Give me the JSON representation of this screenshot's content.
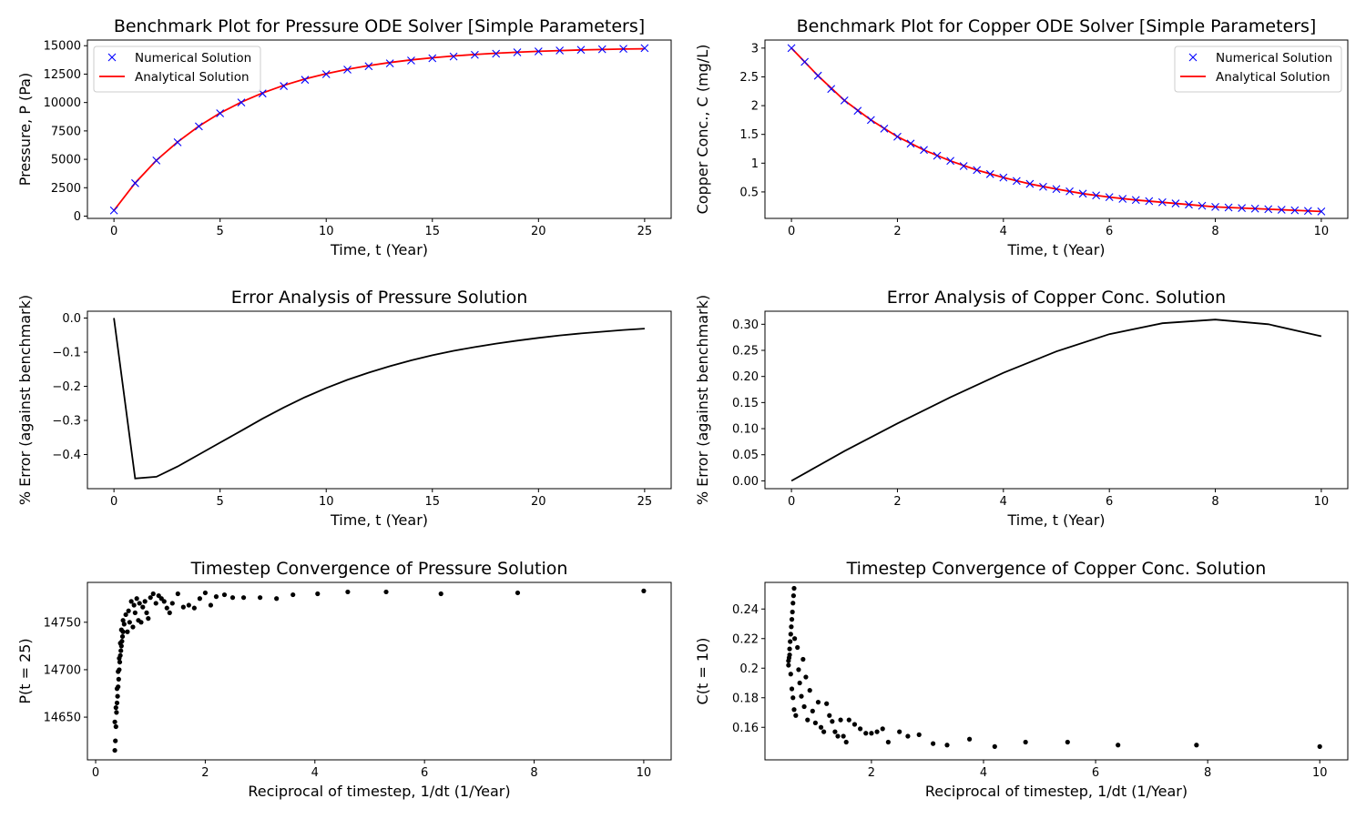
{
  "figure": {
    "background": "#ffffff"
  },
  "colors": {
    "numerical": "#0000ff",
    "analytical": "#ff0000",
    "error": "#000000",
    "points": "#000000"
  },
  "charts": [
    {
      "id": "p1",
      "type": "line",
      "title": "Benchmark Plot for Pressure ODE Solver [Simple Parameters]",
      "xlabel": "Time, t (Year)",
      "ylabel": "Pressure, P (Pa)",
      "xlim": [
        -1.25,
        26.25
      ],
      "ylim": [
        -200,
        15500
      ],
      "xticks": [
        0,
        5,
        10,
        15,
        20,
        25
      ],
      "yticks": [
        0,
        2500,
        5000,
        7500,
        10000,
        12500,
        15000
      ],
      "legend_position": "upper-left",
      "series": [
        {
          "name": "Numerical Solution",
          "marker": "x",
          "color": "#0000ff",
          "x": [
            0,
            1,
            2,
            3,
            4,
            5,
            6,
            7,
            8,
            9,
            10,
            11,
            12,
            13,
            14,
            15,
            16,
            17,
            18,
            19,
            20,
            21,
            22,
            23,
            24,
            25
          ],
          "y": [
            500,
            2900,
            4900,
            6500,
            7900,
            9050,
            10000,
            10800,
            11450,
            12000,
            12500,
            12900,
            13200,
            13450,
            13700,
            13900,
            14050,
            14200,
            14300,
            14420,
            14500,
            14580,
            14640,
            14690,
            14730,
            14790
          ]
        },
        {
          "name": "Analytical Solution",
          "line": "solid",
          "color": "#ff0000",
          "x": [
            0,
            1,
            2,
            3,
            4,
            5,
            6,
            7,
            8,
            9,
            10,
            11,
            12,
            13,
            14,
            15,
            16,
            17,
            18,
            19,
            20,
            21,
            22,
            23,
            24,
            25
          ],
          "y": [
            500,
            2914,
            4921,
            6537,
            7920,
            9074,
            10037,
            10840,
            11510,
            12070,
            12537,
            12927,
            13252,
            13523,
            13750,
            13939,
            14097,
            14228,
            14338,
            14430,
            14506,
            14570,
            14623,
            14667,
            14704,
            14735
          ]
        }
      ]
    },
    {
      "id": "c1",
      "type": "line",
      "title": "Benchmark Plot for Copper ODE Solver [Simple Parameters]",
      "xlabel": "Time, t (Year)",
      "ylabel": "Copper Conc., C (mg/L)",
      "xlim": [
        -0.5,
        10.5
      ],
      "ylim": [
        0.04,
        3.14
      ],
      "xticks": [
        0,
        2,
        4,
        6,
        8,
        10
      ],
      "yticks": [
        0.5,
        1.0,
        1.5,
        2.0,
        2.5,
        3.0
      ],
      "legend_position": "upper-right",
      "series": [
        {
          "name": "Numerical Solution",
          "marker": "x",
          "color": "#0000ff",
          "x": [
            0,
            0.25,
            0.5,
            0.75,
            1,
            1.25,
            1.5,
            1.75,
            2,
            2.25,
            2.5,
            2.75,
            3,
            3.25,
            3.5,
            3.75,
            4,
            4.25,
            4.5,
            4.75,
            5,
            5.25,
            5.5,
            5.75,
            6,
            6.25,
            6.5,
            6.75,
            7,
            7.25,
            7.5,
            7.75,
            8,
            8.25,
            8.5,
            8.75,
            9,
            9.25,
            9.5,
            9.75,
            10
          ],
          "y": [
            3.0,
            2.76,
            2.52,
            2.29,
            2.09,
            1.91,
            1.75,
            1.6,
            1.46,
            1.34,
            1.23,
            1.13,
            1.04,
            0.95,
            0.88,
            0.81,
            0.75,
            0.69,
            0.64,
            0.59,
            0.55,
            0.51,
            0.47,
            0.44,
            0.41,
            0.38,
            0.36,
            0.34,
            0.32,
            0.3,
            0.28,
            0.26,
            0.24,
            0.23,
            0.22,
            0.21,
            0.2,
            0.19,
            0.18,
            0.17,
            0.16
          ]
        },
        {
          "name": "Analytical Solution",
          "line": "solid",
          "color": "#ff0000",
          "x": [
            0,
            0.5,
            1,
            1.5,
            2,
            2.5,
            3,
            3.5,
            4,
            4.5,
            5,
            5.5,
            6,
            6.5,
            7,
            7.5,
            8,
            8.5,
            9,
            9.5,
            10
          ],
          "y": [
            3.0,
            2.52,
            2.09,
            1.75,
            1.46,
            1.23,
            1.04,
            0.88,
            0.75,
            0.64,
            0.55,
            0.47,
            0.41,
            0.36,
            0.32,
            0.28,
            0.24,
            0.22,
            0.2,
            0.18,
            0.16
          ]
        }
      ]
    },
    {
      "id": "p2",
      "type": "line",
      "title": "Error Analysis of Pressure Solution",
      "xlabel": "Time, t (Year)",
      "ylabel": "% Error (against benchmark)",
      "xlim": [
        -1.25,
        26.25
      ],
      "ylim": [
        -0.5,
        0.02
      ],
      "xticks": [
        0,
        5,
        10,
        15,
        20,
        25
      ],
      "yticks": [
        0.0,
        -0.1,
        -0.2,
        -0.3,
        -0.4
      ],
      "ytick_labels": [
        "0.0",
        "−0.1",
        "−0.2",
        "−0.3",
        "−0.4"
      ],
      "series": [
        {
          "name": "",
          "line": "solid",
          "color": "#000000",
          "x": [
            0,
            1,
            2,
            3,
            4,
            5,
            6,
            7,
            8,
            9,
            10,
            11,
            12,
            13,
            14,
            15,
            16,
            17,
            18,
            19,
            20,
            21,
            22,
            23,
            24,
            25
          ],
          "y": [
            0,
            -0.47,
            -0.465,
            -0.435,
            -0.4,
            -0.365,
            -0.33,
            -0.295,
            -0.262,
            -0.232,
            -0.205,
            -0.181,
            -0.16,
            -0.141,
            -0.124,
            -0.109,
            -0.096,
            -0.085,
            -0.075,
            -0.066,
            -0.058,
            -0.051,
            -0.045,
            -0.04,
            -0.035,
            -0.031
          ]
        }
      ]
    },
    {
      "id": "c2",
      "type": "line",
      "title": "Error Analysis of Copper Conc. Solution",
      "xlabel": "Time, t (Year)",
      "ylabel": "% Error (against benchmark)",
      "xlim": [
        -0.5,
        10.5
      ],
      "ylim": [
        -0.015,
        0.325
      ],
      "xticks": [
        0,
        2,
        4,
        6,
        8,
        10
      ],
      "yticks": [
        0.0,
        0.05,
        0.1,
        0.15,
        0.2,
        0.25,
        0.3
      ],
      "ytick_labels": [
        "0.00",
        "0.05",
        "0.10",
        "0.15",
        "0.20",
        "0.25",
        "0.30"
      ],
      "series": [
        {
          "name": "",
          "line": "solid",
          "color": "#000000",
          "x": [
            0,
            1,
            2,
            3,
            4,
            5,
            6,
            7,
            8,
            9,
            10
          ],
          "y": [
            0,
            0.057,
            0.11,
            0.16,
            0.207,
            0.248,
            0.281,
            0.302,
            0.309,
            0.3,
            0.277
          ]
        }
      ]
    },
    {
      "id": "p3",
      "type": "scatter",
      "title": "Timestep Convergence of Pressure Solution",
      "xlabel": "Reciprocal of timestep, 1/dt (1/Year)",
      "ylabel": "P(t = 25)",
      "xlim": [
        -0.15,
        10.5
      ],
      "ylim": [
        14605,
        14792
      ],
      "xticks": [
        0,
        2,
        4,
        6,
        8,
        10
      ],
      "yticks": [
        14650,
        14700,
        14750
      ],
      "series": [
        {
          "name": "",
          "marker": "dot",
          "color": "#000000",
          "x": [
            0.35,
            0.36,
            0.37,
            0.38,
            0.39,
            0.4,
            0.41,
            0.42,
            0.43,
            0.44,
            0.45,
            0.46,
            0.47,
            0.48,
            0.49,
            0.5,
            0.35,
            0.37,
            0.39,
            0.41,
            0.43,
            0.45,
            0.47,
            0.5,
            0.52,
            0.55,
            0.58,
            0.6,
            0.62,
            0.65,
            0.68,
            0.7,
            0.72,
            0.75,
            0.78,
            0.8,
            0.83,
            0.86,
            0.9,
            0.93,
            0.96,
            1.0,
            1.05,
            1.1,
            1.15,
            1.2,
            1.25,
            1.3,
            1.35,
            1.4,
            1.5,
            1.6,
            1.7,
            1.8,
            1.9,
            2.0,
            2.1,
            2.2,
            2.35,
            2.5,
            2.7,
            3.0,
            3.3,
            3.6,
            4.05,
            4.6,
            5.3,
            6.3,
            7.7,
            10.0
          ],
          "y": [
            14615,
            14625,
            14640,
            14655,
            14665,
            14672,
            14682,
            14690,
            14700,
            14708,
            14715,
            14720,
            14725,
            14730,
            14735,
            14740,
            14645,
            14660,
            14680,
            14698,
            14712,
            14728,
            14742,
            14752,
            14748,
            14758,
            14740,
            14762,
            14750,
            14772,
            14745,
            14768,
            14760,
            14775,
            14752,
            14770,
            14750,
            14766,
            14772,
            14760,
            14754,
            14776,
            14780,
            14770,
            14778,
            14775,
            14772,
            14765,
            14760,
            14770,
            14780,
            14766,
            14768,
            14765,
            14775,
            14781,
            14768,
            14777,
            14779,
            14776,
            14776,
            14776,
            14775,
            14779,
            14780,
            14782,
            14782,
            14780,
            14781,
            14783
          ]
        }
      ]
    },
    {
      "id": "c3",
      "type": "scatter",
      "title": "Timestep Convergence of Copper Conc. Solution",
      "xlabel": "Reciprocal of timestep, 1/dt (1/Year)",
      "ylabel": "C(t = 10)",
      "xlim": [
        0.1,
        10.5
      ],
      "ylim": [
        0.138,
        0.258
      ],
      "xticks": [
        2,
        4,
        6,
        8,
        10
      ],
      "yticks": [
        0.16,
        0.18,
        0.2,
        0.22,
        0.24
      ],
      "series": [
        {
          "name": "",
          "marker": "dot",
          "color": "#000000",
          "x": [
            0.52,
            0.53,
            0.54,
            0.55,
            0.56,
            0.57,
            0.58,
            0.59,
            0.6,
            0.61,
            0.62,
            0.63,
            0.52,
            0.54,
            0.56,
            0.58,
            0.6,
            0.62,
            0.65,
            0.68,
            0.7,
            0.72,
            0.75,
            0.78,
            0.8,
            0.83,
            0.86,
            0.9,
            0.95,
            1.0,
            1.05,
            1.1,
            1.15,
            1.2,
            1.25,
            1.3,
            1.35,
            1.4,
            1.45,
            1.5,
            1.55,
            1.6,
            1.7,
            1.8,
            1.9,
            2.0,
            2.1,
            2.2,
            2.3,
            2.5,
            2.65,
            2.85,
            3.1,
            3.35,
            3.75,
            4.2,
            4.75,
            5.5,
            6.4,
            7.8,
            10.0
          ],
          "y": [
            0.202,
            0.207,
            0.213,
            0.218,
            0.223,
            0.228,
            0.233,
            0.238,
            0.244,
            0.249,
            0.254,
            0.22,
            0.205,
            0.209,
            0.196,
            0.186,
            0.18,
            0.172,
            0.168,
            0.214,
            0.199,
            0.19,
            0.181,
            0.206,
            0.174,
            0.194,
            0.165,
            0.185,
            0.171,
            0.163,
            0.177,
            0.16,
            0.157,
            0.176,
            0.168,
            0.164,
            0.157,
            0.154,
            0.165,
            0.154,
            0.15,
            0.165,
            0.162,
            0.159,
            0.156,
            0.156,
            0.157,
            0.159,
            0.15,
            0.157,
            0.154,
            0.155,
            0.149,
            0.148,
            0.152,
            0.147,
            0.15,
            0.15,
            0.148,
            0.148,
            0.147
          ]
        }
      ]
    }
  ]
}
